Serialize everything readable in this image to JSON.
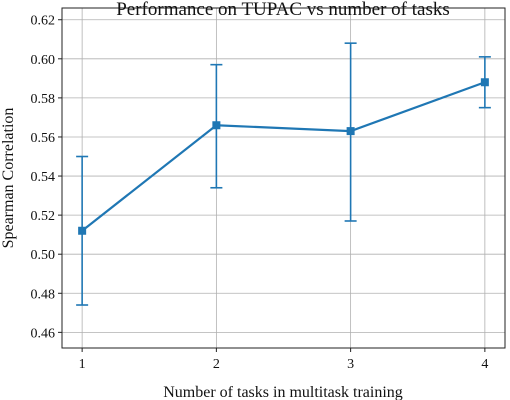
{
  "chart_data": {
    "type": "line",
    "title": "Performance on TUPAC vs number of tasks",
    "xlabel": "Number of tasks in multitask training",
    "ylabel": "Spearman Correlation",
    "x": [
      1,
      2,
      3,
      4
    ],
    "x_ticks": [
      1,
      2,
      3,
      4
    ],
    "x_tick_labels": [
      "1",
      "2",
      "3",
      "4"
    ],
    "xlim": [
      0.85,
      4.15
    ],
    "ylim": [
      0.452,
      0.626
    ],
    "y_ticks": [
      0.46,
      0.48,
      0.5,
      0.52,
      0.54,
      0.56,
      0.58,
      0.6,
      0.62
    ],
    "y_tick_labels": [
      "0.46",
      "0.48",
      "0.50",
      "0.52",
      "0.54",
      "0.56",
      "0.58",
      "0.60",
      "0.62"
    ],
    "grid": true,
    "series": [
      {
        "values": [
          0.512,
          0.566,
          0.563,
          0.588
        ],
        "error_lower": [
          0.474,
          0.534,
          0.517,
          0.575
        ],
        "error_upper": [
          0.55,
          0.597,
          0.608,
          0.601
        ],
        "color": "#1f77b4",
        "marker": "square"
      }
    ]
  }
}
